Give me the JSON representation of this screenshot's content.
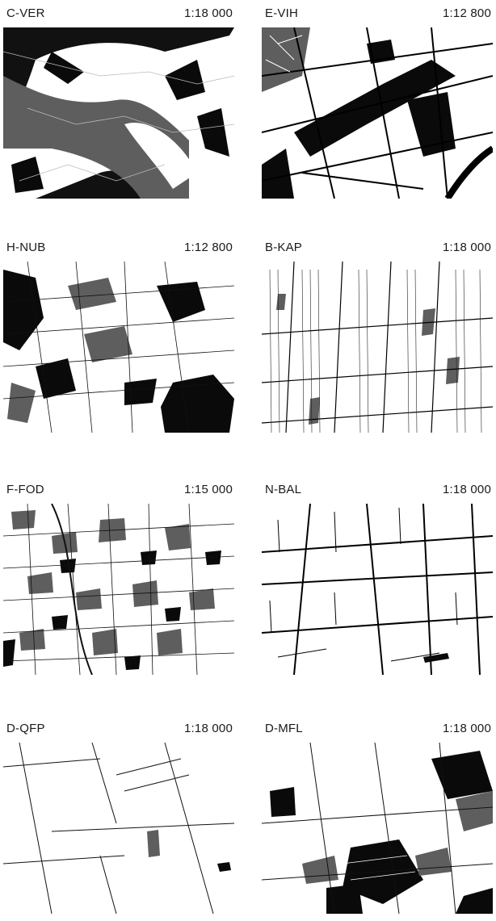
{
  "panels": [
    {
      "code": "C-VER",
      "scale": "1:18 000",
      "legend_colors": {
        "wood": "#0a0a0a",
        "meadow": "#5e5e5e",
        "field": "#ffffff"
      }
    },
    {
      "code": "E-VIH",
      "scale": "1:12 800"
    },
    {
      "code": "H-NUB",
      "scale": "1:12 800"
    },
    {
      "code": "B-KAP",
      "scale": "1:18 000"
    },
    {
      "code": "F-FOD",
      "scale": "1:15 000"
    },
    {
      "code": "N-BAL",
      "scale": "1:18 000"
    },
    {
      "code": "D-QFP",
      "scale": "1:18 000"
    },
    {
      "code": "D-MFL",
      "scale": "1:18 000"
    }
  ]
}
